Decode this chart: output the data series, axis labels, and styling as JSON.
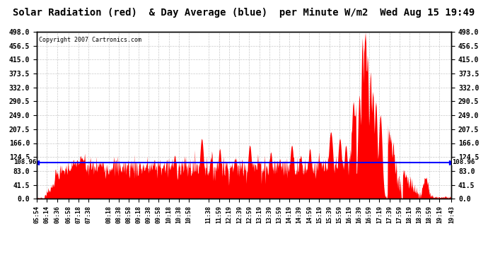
{
  "title": "Solar Radiation (red)  & Day Average (blue)  per Minute W/m2  Wed Aug 15 19:49",
  "copyright": "Copyright 2007 Cartronics.com",
  "ymin": 0.0,
  "ymax": 498.0,
  "yticks": [
    0.0,
    41.5,
    83.0,
    124.5,
    166.0,
    207.5,
    249.0,
    290.5,
    332.0,
    373.5,
    415.0,
    456.5,
    498.0
  ],
  "day_average": 108.96,
  "day_average_label": "108.96",
  "background_color": "#ffffff",
  "grid_color": "#bbbbbb",
  "fill_color": "#ff0000",
  "line_color": "#0000ff",
  "xtick_labels": [
    "05:54",
    "06:14",
    "06:36",
    "06:58",
    "07:18",
    "07:38",
    "08:18",
    "08:38",
    "08:58",
    "09:18",
    "09:38",
    "09:58",
    "10:18",
    "10:38",
    "10:58",
    "11:38",
    "11:59",
    "12:19",
    "12:39",
    "12:59",
    "13:19",
    "13:39",
    "13:59",
    "14:19",
    "14:39",
    "14:59",
    "15:19",
    "15:39",
    "15:59",
    "16:19",
    "16:39",
    "16:59",
    "17:19",
    "17:39",
    "17:59",
    "18:19",
    "18:39",
    "18:59",
    "19:19",
    "19:43"
  ]
}
